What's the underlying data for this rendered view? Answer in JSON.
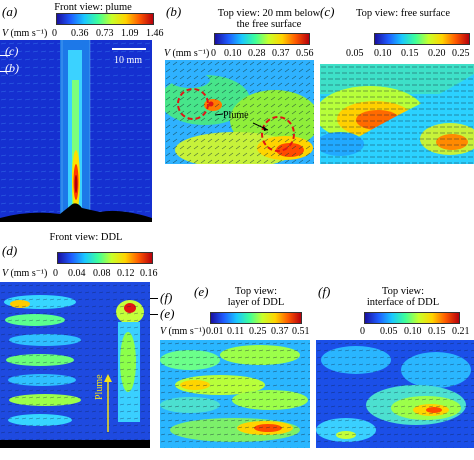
{
  "panels": {
    "a": {
      "label": "(a)",
      "title": "Front view: plume",
      "v_label": "V",
      "v_unit": "(mm s⁻¹)",
      "ticks": [
        "0",
        "0.36",
        "0.73",
        "1.09",
        "1.46"
      ],
      "inset_labels": [
        "(c)",
        "(b)"
      ],
      "scale_text": "10 mm"
    },
    "b": {
      "label": "(b)",
      "title_line1": "Top view: 20 mm below",
      "title_line2": "the free surface",
      "v_label": "V",
      "v_unit": "(mm s⁻¹)",
      "ticks": [
        "0",
        "0.10",
        "0.28",
        "0.37",
        "0.56"
      ],
      "annotation": "Plume"
    },
    "c": {
      "label": "(c)",
      "title": "Top view: free surface",
      "ticks": [
        "0.05",
        "0.10",
        "0.15",
        "0.20",
        "0.25"
      ]
    },
    "d": {
      "label": "(d)",
      "title": "Front view: DDL",
      "v_label": "V",
      "v_unit": "(mm s⁻¹)",
      "ticks": [
        "0",
        "0.04",
        "0.08",
        "0.12",
        "0.16"
      ],
      "side_labels": [
        "(f)",
        "(e)"
      ],
      "annotation": "Plume"
    },
    "e": {
      "label": "(e)",
      "title_line1": "Top view:",
      "title_line2": "layer of DDL",
      "v_label": "V",
      "v_unit": "(mm s⁻¹)",
      "ticks": [
        "0.01",
        "0.11",
        "0.25",
        "0.37",
        "0.51"
      ]
    },
    "f": {
      "label": "(f)",
      "title_line1": "Top view:",
      "title_line2": "interface of DDL",
      "ticks": [
        "0",
        "0.05",
        "0.10",
        "0.15",
        "0.21"
      ]
    }
  },
  "colors": {
    "background_field": "#1a36d8",
    "high": "#d0101a",
    "mid": "#f4e21a",
    "low": "#2ec6e0"
  }
}
